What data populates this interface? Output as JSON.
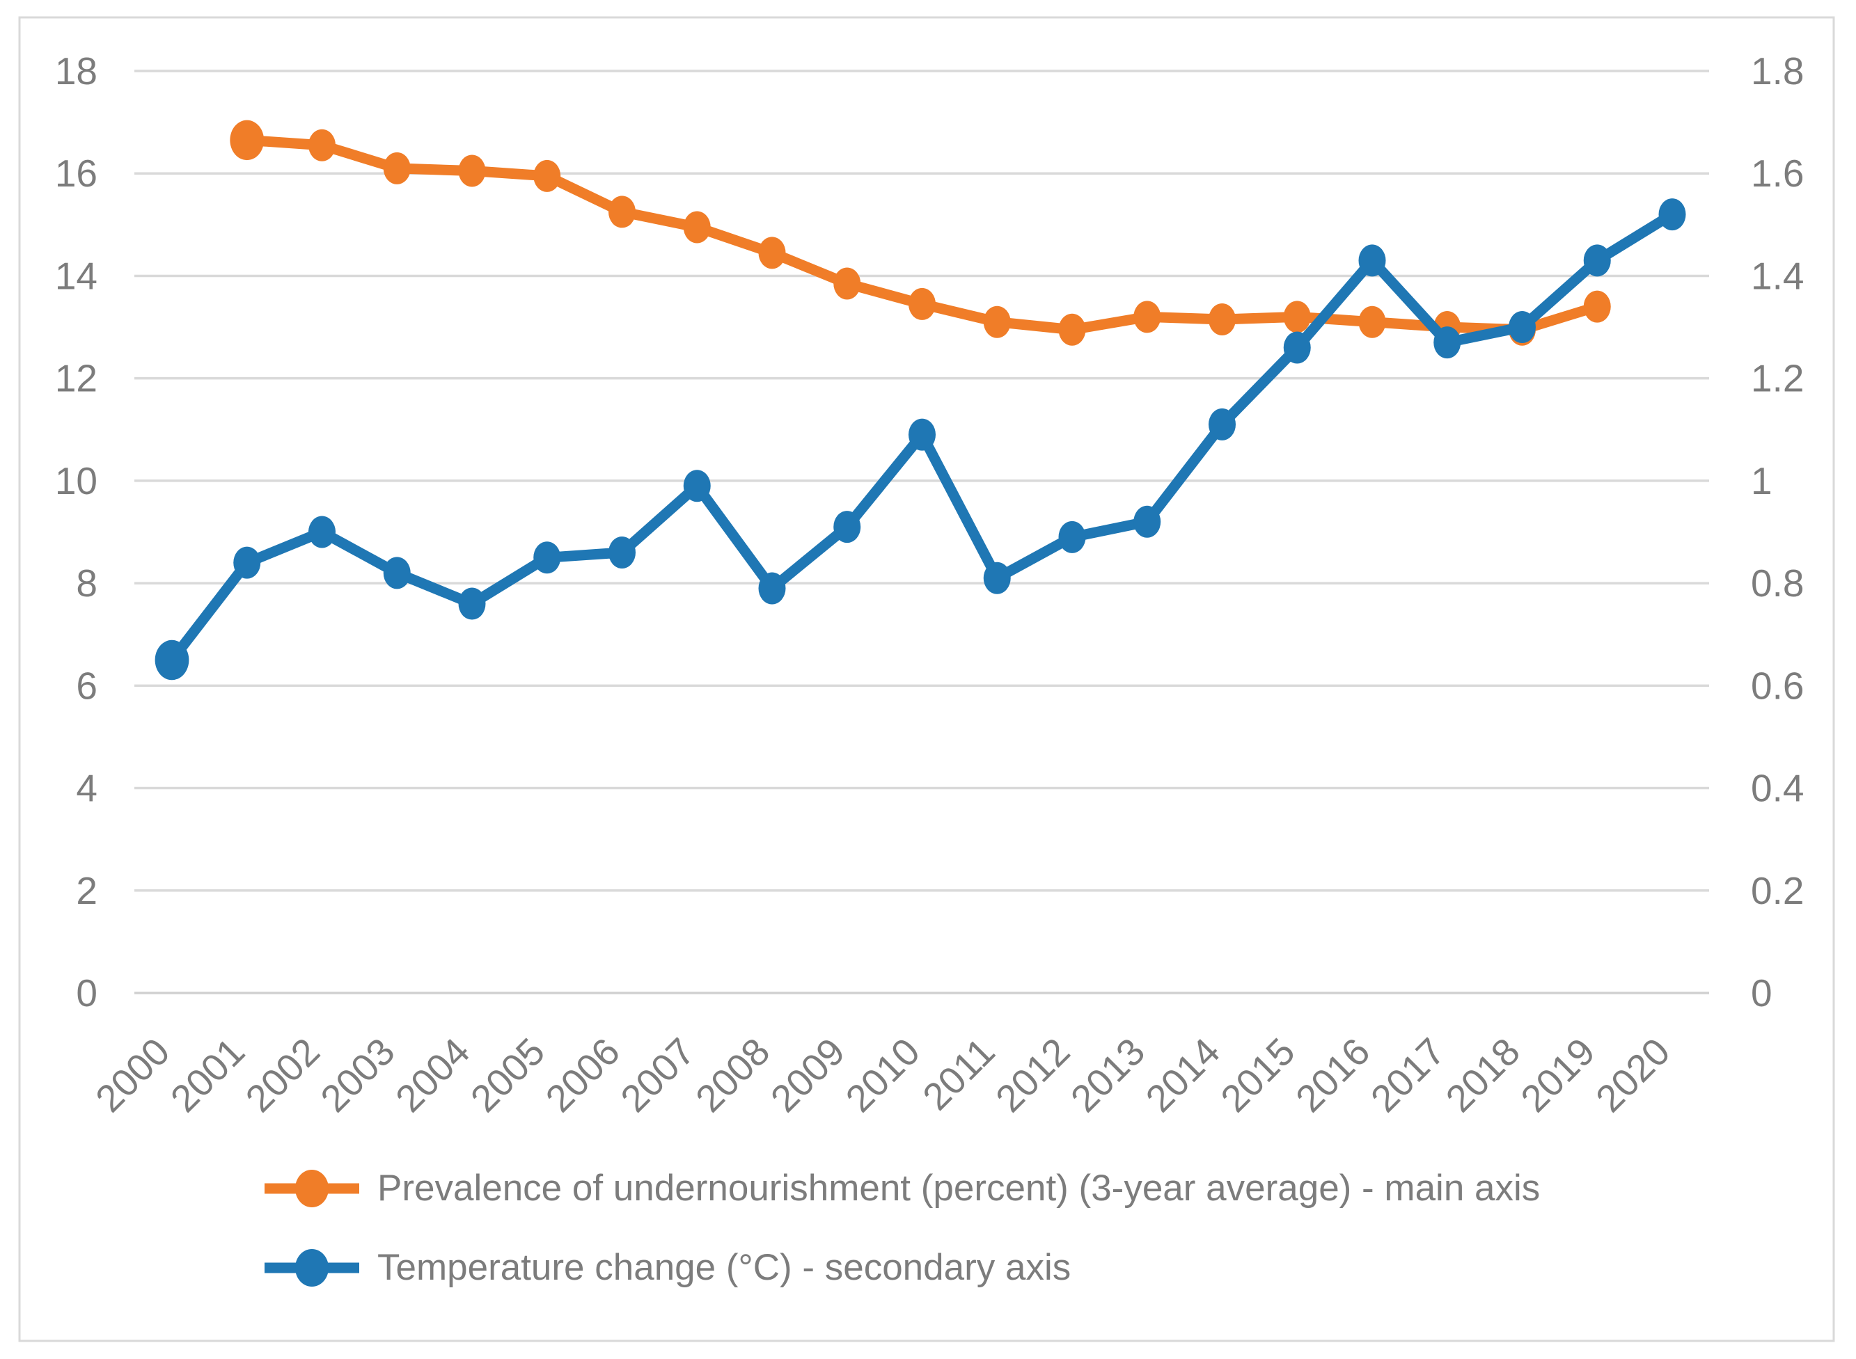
{
  "chart_data": {
    "type": "line",
    "title": "",
    "categories": [
      "2000",
      "2001",
      "2002",
      "2003",
      "2004",
      "2005",
      "2006",
      "2007",
      "2008",
      "2009",
      "2010",
      "2011",
      "2012",
      "2013",
      "2014",
      "2015",
      "2016",
      "2017",
      "2018",
      "2019",
      "2020"
    ],
    "series": [
      {
        "name": "Prevalence of undernourishment (percent) (3-year average) - main axis",
        "axis": "left",
        "color": "#F07D28",
        "values": [
          null,
          16.65,
          16.55,
          16.1,
          16.05,
          15.95,
          15.25,
          14.95,
          14.45,
          13.85,
          13.45,
          13.1,
          12.95,
          13.2,
          13.15,
          13.2,
          13.1,
          13.0,
          12.95,
          13.4,
          null
        ]
      },
      {
        "name": "Temperature change (°C) - secondary axis",
        "axis": "right",
        "color": "#1F77B4",
        "values": [
          0.65,
          0.84,
          0.9,
          0.82,
          0.76,
          0.85,
          0.86,
          0.99,
          0.79,
          0.91,
          1.09,
          0.81,
          0.89,
          0.92,
          1.11,
          1.26,
          1.43,
          1.27,
          1.3,
          1.43,
          1.52
        ]
      }
    ],
    "left_axis": {
      "min": 0,
      "max": 18,
      "step": 2,
      "ticks": [
        "0",
        "2",
        "4",
        "6",
        "8",
        "10",
        "12",
        "14",
        "16",
        "18"
      ]
    },
    "right_axis": {
      "min": 0,
      "max": 1.8,
      "step": 0.2,
      "ticks": [
        "0",
        "0.2",
        "0.4",
        "0.6",
        "0.8",
        "1",
        "1.2",
        "1.4",
        "1.6",
        "1.8"
      ]
    },
    "grid": true,
    "legend_position": "bottom-left",
    "xlabel": "",
    "ylabel": ""
  },
  "colors": {
    "gridline": "#D9D9D9",
    "baseline": "#D0D0D0",
    "border": "#D9D9D9",
    "tick_text": "#7C7C7C",
    "background": "#FFFFFF",
    "series_orange": "#F07D28",
    "series_blue": "#1F77B4"
  }
}
